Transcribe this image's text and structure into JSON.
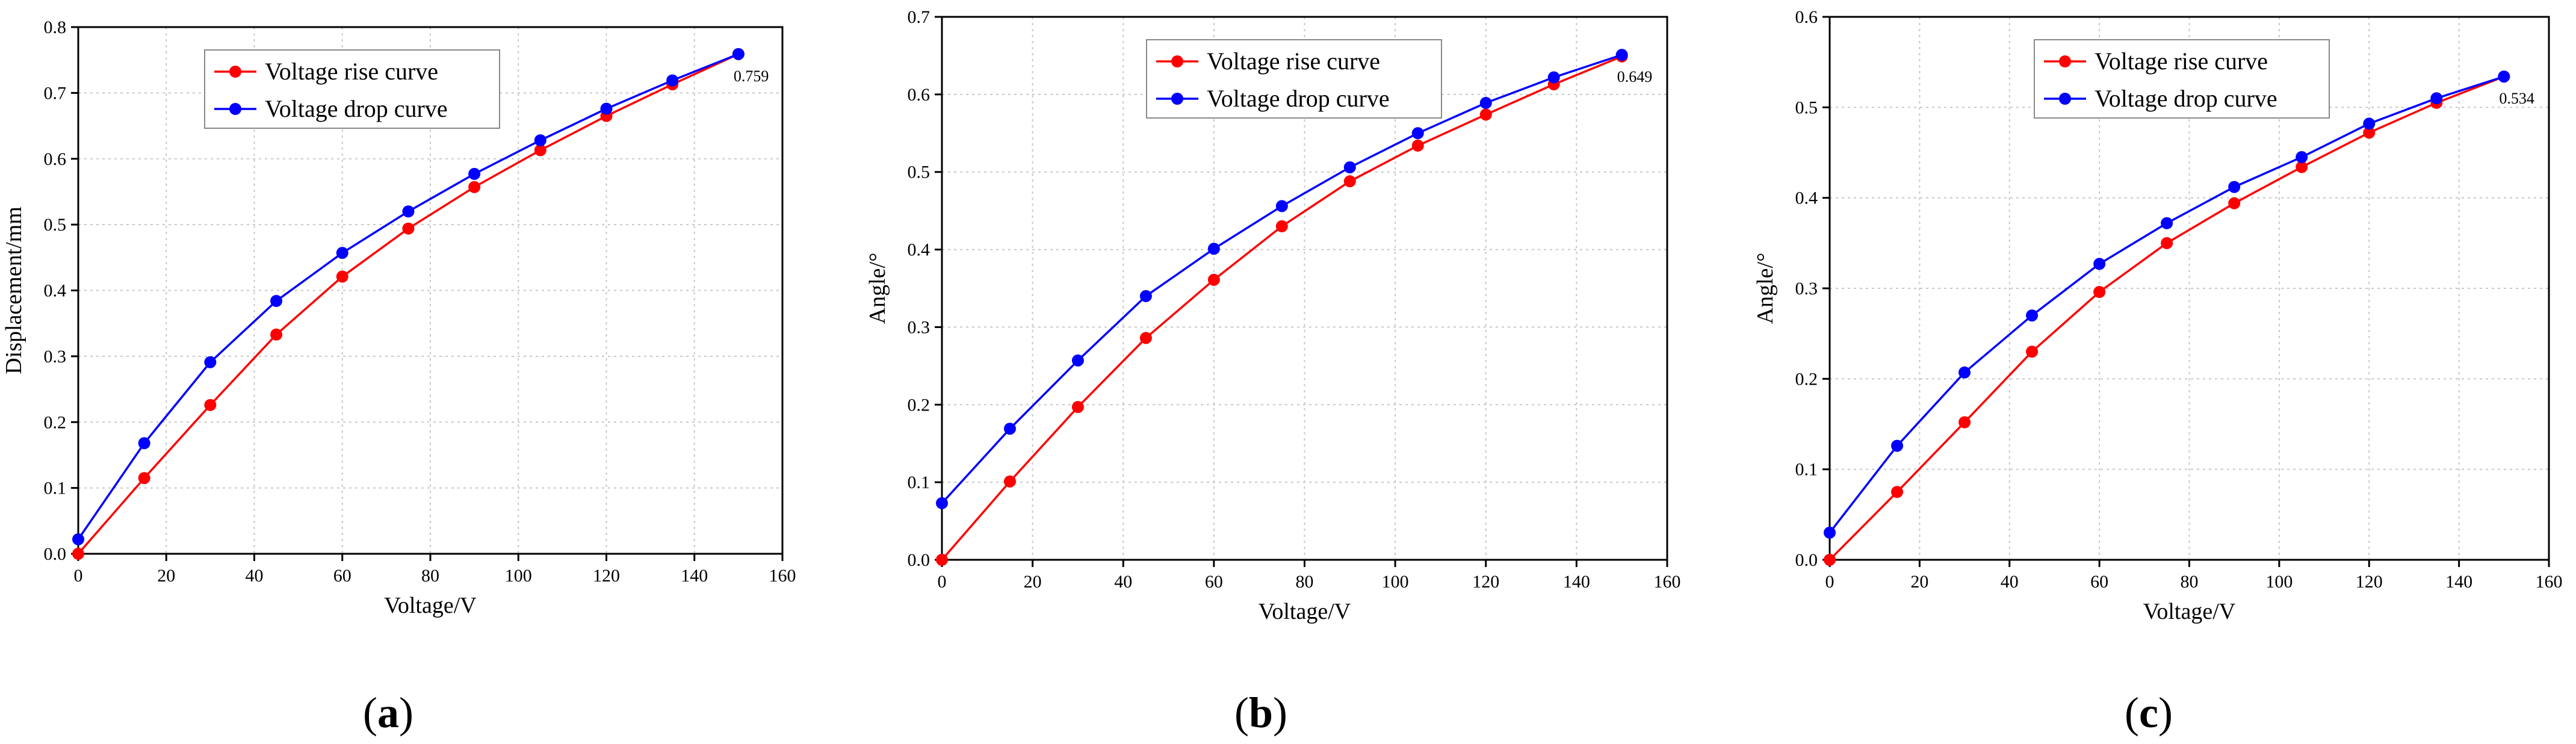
{
  "chart_data": [
    {
      "type": "line",
      "caption_letter": "a",
      "xlabel": "Voltage/V",
      "ylabel": "Displacement/mm",
      "xlim": [
        0,
        160
      ],
      "ylim": [
        0,
        0.8
      ],
      "x_ticks": [
        "0",
        "20",
        "40",
        "60",
        "80",
        "100",
        "120",
        "140",
        "160"
      ],
      "y_ticks": [
        "0.0",
        "0.1",
        "0.2",
        "0.3",
        "0.4",
        "0.5",
        "0.6",
        "0.7",
        "0.8"
      ],
      "x_tick_values": [
        0,
        20,
        40,
        60,
        80,
        100,
        120,
        140,
        160
      ],
      "y_tick_values": [
        0,
        0.1,
        0.2,
        0.3,
        0.4,
        0.5,
        0.6,
        0.7,
        0.8
      ],
      "end_label": "0.759",
      "x": [
        0,
        15,
        30,
        45,
        60,
        75,
        90,
        105,
        120,
        135,
        150
      ],
      "series": [
        {
          "name": "Voltage rise curve",
          "color": "#ff0000",
          "values": [
            0.0,
            0.115,
            0.226,
            0.333,
            0.421,
            0.494,
            0.557,
            0.613,
            0.665,
            0.713,
            0.759
          ]
        },
        {
          "name": "Voltage drop curve",
          "color": "#0000ff",
          "values": [
            0.022,
            0.168,
            0.291,
            0.384,
            0.457,
            0.52,
            0.577,
            0.628,
            0.676,
            0.719,
            0.759
          ]
        }
      ]
    },
    {
      "type": "line",
      "caption_letter": "b",
      "xlabel": "Voltage/V",
      "ylabel": "Angle/°",
      "xlim": [
        0,
        160
      ],
      "ylim": [
        0,
        0.7
      ],
      "x_ticks": [
        "0",
        "20",
        "40",
        "60",
        "80",
        "100",
        "120",
        "140",
        "160"
      ],
      "y_ticks": [
        "0.0",
        "0.1",
        "0.2",
        "0.3",
        "0.4",
        "0.5",
        "0.6",
        "0.7"
      ],
      "x_tick_values": [
        0,
        20,
        40,
        60,
        80,
        100,
        120,
        140,
        160
      ],
      "y_tick_values": [
        0,
        0.1,
        0.2,
        0.3,
        0.4,
        0.5,
        0.6,
        0.7
      ],
      "end_label": "0.649",
      "x": [
        0,
        15,
        30,
        45,
        60,
        75,
        90,
        105,
        120,
        135,
        150
      ],
      "series": [
        {
          "name": "Voltage rise curve",
          "color": "#ff0000",
          "values": [
            0.0,
            0.101,
            0.197,
            0.286,
            0.361,
            0.43,
            0.488,
            0.534,
            0.574,
            0.613,
            0.649
          ]
        },
        {
          "name": "Voltage drop curve",
          "color": "#0000ff",
          "values": [
            0.073,
            0.169,
            0.257,
            0.34,
            0.401,
            0.456,
            0.506,
            0.55,
            0.589,
            0.622,
            0.651
          ]
        }
      ]
    },
    {
      "type": "line",
      "caption_letter": "c",
      "xlabel": "Voltage/V",
      "ylabel": "Angle/°",
      "xlim": [
        0,
        160
      ],
      "ylim": [
        0,
        0.6
      ],
      "x_ticks": [
        "0",
        "20",
        "40",
        "60",
        "80",
        "100",
        "120",
        "140",
        "160"
      ],
      "y_ticks": [
        "0.0",
        "0.1",
        "0.2",
        "0.3",
        "0.4",
        "0.5",
        "0.6"
      ],
      "x_tick_values": [
        0,
        20,
        40,
        60,
        80,
        100,
        120,
        140,
        160
      ],
      "y_tick_values": [
        0,
        0.1,
        0.2,
        0.3,
        0.4,
        0.5,
        0.6
      ],
      "end_label": "0.534",
      "x": [
        0,
        15,
        30,
        45,
        60,
        75,
        90,
        105,
        120,
        135,
        150
      ],
      "series": [
        {
          "name": "Voltage rise curve",
          "color": "#ff0000",
          "values": [
            0.0,
            0.075,
            0.152,
            0.23,
            0.296,
            0.35,
            0.394,
            0.434,
            0.472,
            0.505,
            0.534
          ]
        },
        {
          "name": "Voltage drop curve",
          "color": "#0000ff",
          "values": [
            0.03,
            0.126,
            0.207,
            0.27,
            0.327,
            0.372,
            0.412,
            0.445,
            0.482,
            0.51,
            0.534
          ]
        }
      ]
    }
  ]
}
